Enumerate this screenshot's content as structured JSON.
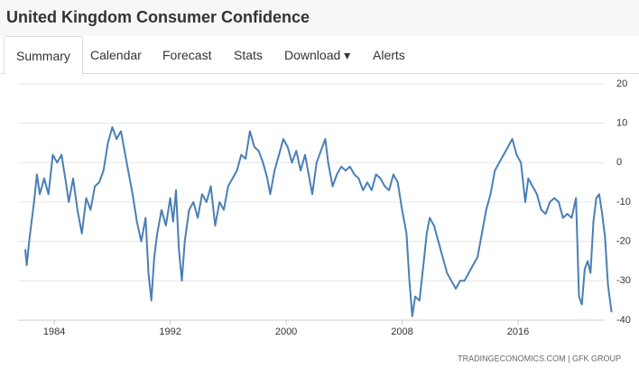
{
  "header": {
    "title": "United Kingdom Consumer Confidence"
  },
  "tabs": [
    "Summary",
    "Calendar",
    "Forecast",
    "Stats",
    "Download",
    "Alerts"
  ],
  "chart_data": {
    "type": "line",
    "x": [
      1982.0,
      1982.1,
      1982.3,
      1982.6,
      1982.8,
      1983.0,
      1983.3,
      1983.6,
      1983.9,
      1984.2,
      1984.5,
      1984.8,
      1985.0,
      1985.3,
      1985.6,
      1985.9,
      1986.2,
      1986.5,
      1986.8,
      1987.1,
      1987.4,
      1987.7,
      1988.0,
      1988.3,
      1988.6,
      1988.9,
      1989.1,
      1989.4,
      1989.7,
      1990.0,
      1990.3,
      1990.5,
      1990.7,
      1990.9,
      1991.1,
      1991.4,
      1991.7,
      1992.0,
      1992.2,
      1992.4,
      1992.6,
      1992.8,
      1993.0,
      1993.3,
      1993.6,
      1993.9,
      1994.2,
      1994.5,
      1994.8,
      1995.1,
      1995.4,
      1995.7,
      1996.0,
      1996.3,
      1996.6,
      1996.9,
      1997.2,
      1997.5,
      1997.8,
      1998.1,
      1998.4,
      1998.7,
      1998.9,
      1999.2,
      1999.5,
      1999.8,
      2000.1,
      2000.4,
      2000.7,
      2001.0,
      2001.3,
      2001.6,
      2001.8,
      2002.1,
      2002.4,
      2002.7,
      2002.9,
      2003.2,
      2003.5,
      2003.8,
      2004.1,
      2004.4,
      2004.7,
      2005.0,
      2005.3,
      2005.6,
      2005.9,
      2006.2,
      2006.5,
      2006.8,
      2007.1,
      2007.4,
      2007.7,
      2008.0,
      2008.3,
      2008.5,
      2008.7,
      2008.9,
      2009.2,
      2009.5,
      2009.7,
      2009.9,
      2010.2,
      2010.5,
      2010.8,
      2011.1,
      2011.4,
      2011.7,
      2012.0,
      2012.3,
      2012.6,
      2012.9,
      2013.2,
      2013.5,
      2013.8,
      2014.1,
      2014.4,
      2014.7,
      2015.0,
      2015.3,
      2015.6,
      2015.9,
      2016.2,
      2016.5,
      2016.7,
      2017.0,
      2017.3,
      2017.6,
      2017.9,
      2018.2,
      2018.5,
      2018.8,
      2019.1,
      2019.4,
      2019.7,
      2020.0,
      2020.2,
      2020.4,
      2020.6,
      2020.8,
      2021.0,
      2021.2,
      2021.4,
      2021.6,
      2021.8,
      2022.0,
      2022.2,
      2022.45
    ],
    "series": [
      {
        "color": "#4a7fb5",
        "values": [
          -22,
          -26,
          -19,
          -10,
          -3,
          -8,
          -4,
          -8,
          2,
          0,
          2,
          -5,
          -10,
          -4,
          -12,
          -18,
          -9,
          -12,
          -6,
          -5,
          -2,
          5,
          9,
          6,
          8,
          2,
          -2,
          -8,
          -15,
          -20,
          -14,
          -28,
          -35,
          -24,
          -18,
          -12,
          -16,
          -9,
          -15,
          -7,
          -22,
          -30,
          -20,
          -12,
          -10,
          -14,
          -8,
          -10,
          -6,
          -16,
          -10,
          -12,
          -6,
          -4,
          -2,
          2,
          1,
          8,
          4,
          3,
          0,
          -4,
          -8,
          -2,
          2,
          6,
          4,
          0,
          3,
          -2,
          2,
          -4,
          -8,
          0,
          3,
          6,
          0,
          -6,
          -3,
          -1,
          -2,
          -1,
          -3,
          -4,
          -7,
          -5,
          -7,
          -3,
          -4,
          -6,
          -7,
          -3,
          -5,
          -12,
          -18,
          -30,
          -39,
          -34,
          -35,
          -25,
          -18,
          -14,
          -16,
          -20,
          -24,
          -28,
          -30,
          -32,
          -30,
          -30,
          -28,
          -26,
          -24,
          -18,
          -12,
          -8,
          -2,
          0,
          2,
          4,
          6,
          2,
          0,
          -10,
          -4,
          -6,
          -8,
          -12,
          -13,
          -10,
          -9,
          -10,
          -14,
          -13,
          -14,
          -9,
          -34,
          -36,
          -27,
          -25,
          -28,
          -15,
          -9,
          -8,
          -13,
          -19,
          -31,
          -38
        ]
      }
    ],
    "xlim": [
      1981.5,
      2022.6
    ],
    "xticks": [
      1984,
      1992,
      2000,
      2008,
      2016
    ],
    "ylim": [
      -40,
      20
    ],
    "yticks": [
      -40,
      -30,
      -20,
      -10,
      0,
      10,
      20
    ],
    "grid": true
  },
  "source": "TRADINGECONOMICS.COM  |  GFK GROUP"
}
